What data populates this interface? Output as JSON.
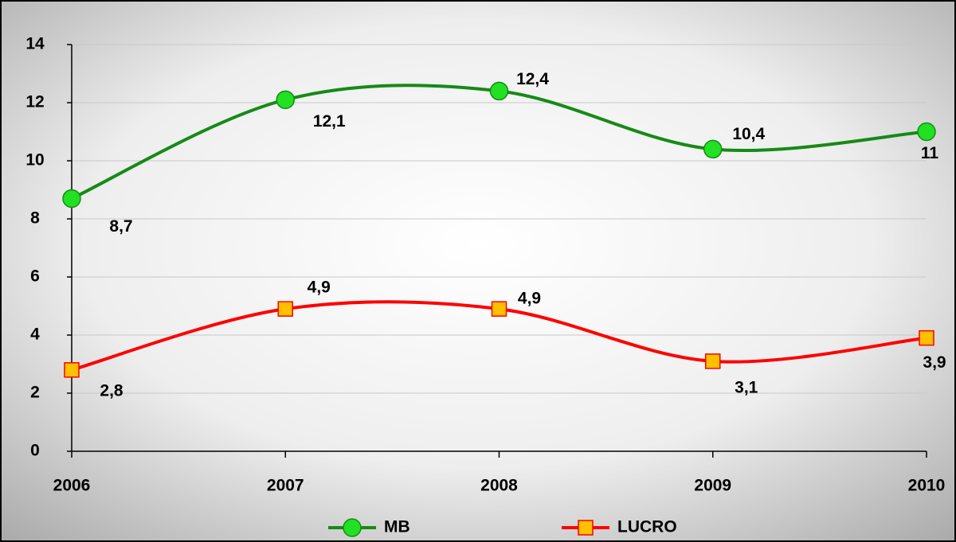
{
  "chart_data": {
    "type": "line",
    "categories": [
      "2006",
      "2007",
      "2008",
      "2009",
      "2010"
    ],
    "series": [
      {
        "name": "MB",
        "color": "#168a16",
        "marker": "circle",
        "marker_color": "#22e022",
        "values": [
          8.7,
          12.1,
          12.4,
          10.4,
          11
        ],
        "value_labels": [
          "8,7",
          "12,1",
          "12,4",
          "10,4",
          "11"
        ]
      },
      {
        "name": "LUCRO",
        "color": "#ff0000",
        "marker": "square",
        "marker_color": "#ffc000",
        "values": [
          2.8,
          4.9,
          4.9,
          3.1,
          3.9
        ],
        "value_labels": [
          "2,8",
          "4,9",
          "4,9",
          "3,1",
          "3,9"
        ]
      }
    ],
    "ylim": [
      0,
      14
    ],
    "yticks": [
      0,
      2,
      4,
      6,
      8,
      10,
      12,
      14
    ],
    "grid": true,
    "smooth": true,
    "legend": "bottom"
  }
}
